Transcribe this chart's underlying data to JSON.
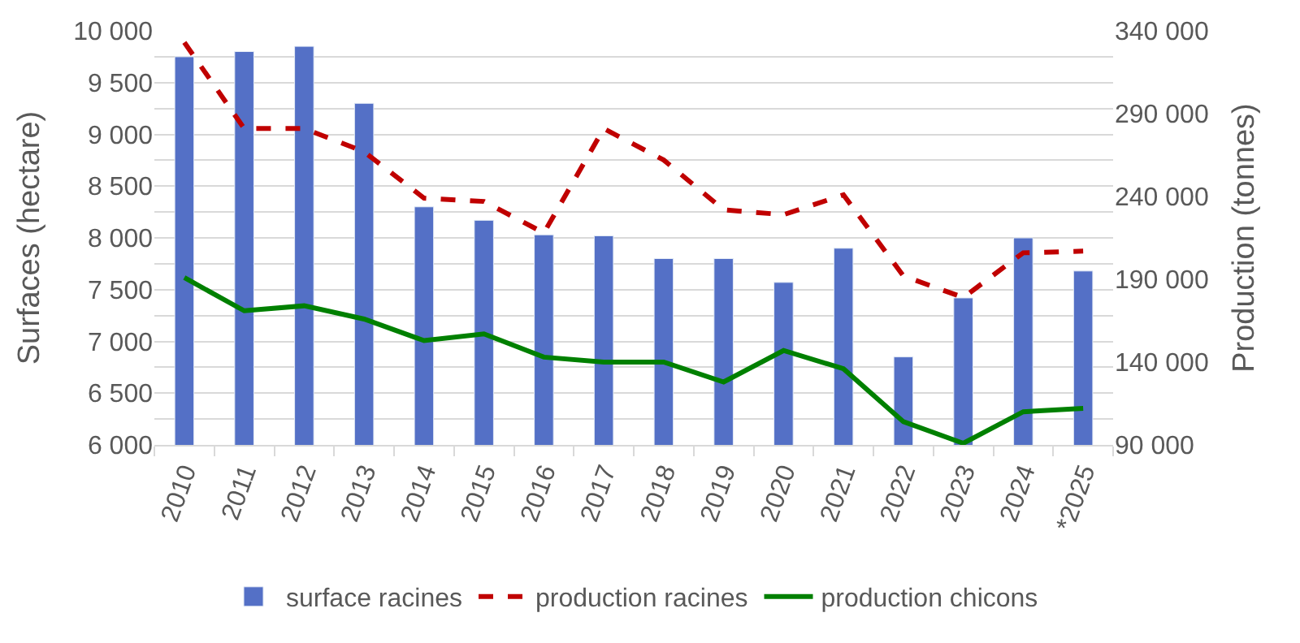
{
  "chart_data": {
    "type": "bar",
    "categories": [
      "2010",
      "2011",
      "2012",
      "2013",
      "2014",
      "2015",
      "2016",
      "2017",
      "2018",
      "2019",
      "2020",
      "2021",
      "2022",
      "2023",
      "2024",
      "*2025"
    ],
    "ylabel": "Surfaces (hectare)",
    "y2label": "Production (tonnes)",
    "series": [
      {
        "name": "surface racines",
        "color": "#5470c6",
        "values": [
          9750,
          9800,
          9850,
          9300,
          8300,
          8170,
          8030,
          8020,
          7800,
          7800,
          7570,
          7900,
          6850,
          7420,
          8000,
          7680
        ]
      },
      {
        "name": "production racines",
        "type": "line",
        "axis": "y2",
        "line_style": "dashed",
        "color": "#c00000",
        "values": [
          333000,
          281000,
          281000,
          267000,
          239000,
          237000,
          218000,
          281000,
          262000,
          232000,
          229000,
          241000,
          192000,
          179000,
          206000,
          207000
        ]
      },
      {
        "name": "production chicons",
        "type": "line",
        "axis": "y2",
        "line_style": "solid",
        "color": "#008000",
        "values": [
          191000,
          171000,
          174000,
          166000,
          153000,
          157000,
          143000,
          140000,
          140000,
          128000,
          147000,
          136000,
          104000,
          91000,
          110000,
          112000
        ]
      }
    ],
    "ylim": [
      6000,
      10000
    ],
    "yticks": [
      {
        "value": 6000,
        "label": "6 000"
      },
      {
        "value": 6500,
        "label": "6 500"
      },
      {
        "value": 7000,
        "label": "7 000"
      },
      {
        "value": 7500,
        "label": "7 500"
      },
      {
        "value": 8000,
        "label": "8 000"
      },
      {
        "value": 8500,
        "label": "8 500"
      },
      {
        "value": 9000,
        "label": "9 000"
      },
      {
        "value": 9500,
        "label": "9 500"
      },
      {
        "value": 10000,
        "label": "10 000"
      }
    ],
    "y2lim": [
      90000,
      340000
    ],
    "y2ticks": [
      {
        "value": 90000,
        "label": "90 000"
      },
      {
        "value": 140000,
        "label": "140 000"
      },
      {
        "value": 190000,
        "label": "190 000"
      },
      {
        "value": 240000,
        "label": "240 000"
      },
      {
        "value": 290000,
        "label": "290 000"
      },
      {
        "value": 340000,
        "label": "340 000"
      }
    ],
    "grid": "y",
    "legend": "bottom",
    "marker": "none"
  }
}
